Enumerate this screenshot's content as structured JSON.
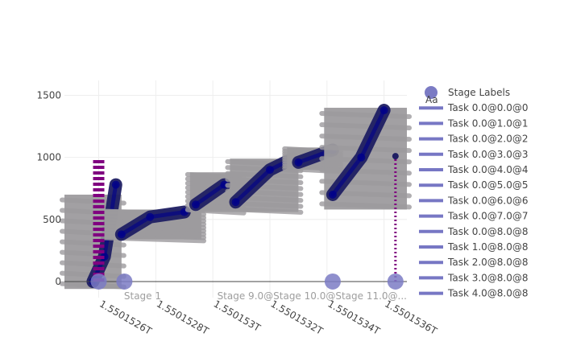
{
  "chart_data": {
    "type": "scatter",
    "xlim": [
      1550152480000,
      1550153680000
    ],
    "ylim": [
      -130,
      1620
    ],
    "x_ticks": [
      {
        "value": 1550152600000,
        "label": "1.5501526T"
      },
      {
        "value": 1550152800000,
        "label": "1.5501528T"
      },
      {
        "value": 1550153000000,
        "label": "1.550153T"
      },
      {
        "value": 1550153200000,
        "label": "1.5501532T"
      },
      {
        "value": 1550153400000,
        "label": "1.5501534T"
      },
      {
        "value": 1550153600000,
        "label": "1.5501536T"
      }
    ],
    "y_ticks": [
      {
        "value": 0,
        "label": "0"
      },
      {
        "value": 500,
        "label": "500"
      },
      {
        "value": 1000,
        "label": "1000"
      },
      {
        "value": 1500,
        "label": "1500"
      }
    ],
    "grid": true,
    "legend_position": "right",
    "legend": [
      {
        "label": "Stage Labels",
        "symbol": "marker"
      },
      {
        "label": "Task 0.0@0.0@0",
        "symbol": "line"
      },
      {
        "label": "Task 0.0@1.0@1",
        "symbol": "line"
      },
      {
        "label": "Task 0.0@2.0@2",
        "symbol": "line"
      },
      {
        "label": "Task 0.0@3.0@3",
        "symbol": "line"
      },
      {
        "label": "Task 0.0@4.0@4",
        "symbol": "line"
      },
      {
        "label": "Task 0.0@5.0@5",
        "symbol": "line"
      },
      {
        "label": "Task 0.0@6.0@6",
        "symbol": "line"
      },
      {
        "label": "Task 0.0@7.0@7",
        "symbol": "line"
      },
      {
        "label": "Task 0.0@8.0@8",
        "symbol": "line"
      },
      {
        "label": "Task 1.0@8.0@8",
        "symbol": "line"
      },
      {
        "label": "Task 2.0@8.0@8",
        "symbol": "line"
      },
      {
        "label": "Task 3.0@8.0@8",
        "symbol": "line"
      },
      {
        "label": "Task 4.0@8.0@8",
        "symbol": "line"
      }
    ],
    "legend_note": "Aa",
    "stage_labels": [
      {
        "x": 1550152600000,
        "y": 0,
        "label": ""
      },
      {
        "x": 1550152690000,
        "y": 0,
        "label": ""
      },
      {
        "x": 1550153420000,
        "y": 0,
        "label": "Stage 10.0@Stage 11.0@..."
      },
      {
        "x": 1550153640000,
        "y": 0,
        "label": ""
      }
    ],
    "stage_annotations": [
      "Stage 1",
      "Stage 9.0@Stage 10.0@Stage 11.0@..."
    ],
    "stages": [
      {
        "x0": 1550152480000,
        "x1": 1550152680000,
        "low": -60,
        "high": 700,
        "dark": [
          [
            1550152580000,
            0
          ],
          [
            1550152620000,
            200
          ],
          [
            1550152660000,
            780
          ]
        ]
      },
      {
        "x0": 1550152620000,
        "x1": 1550152960000,
        "low": 340,
        "high": 580,
        "dark": [
          [
            1550152680000,
            380
          ],
          [
            1550152780000,
            520
          ],
          [
            1550152900000,
            560
          ]
        ]
      },
      {
        "x0": 1550152920000,
        "x1": 1550153100000,
        "low": 560,
        "high": 880,
        "dark": [
          [
            1550152940000,
            620
          ],
          [
            1550153040000,
            780
          ]
        ]
      },
      {
        "x0": 1550153060000,
        "x1": 1550153300000,
        "low": 560,
        "high": 990,
        "dark": [
          [
            1550153080000,
            640
          ],
          [
            1550153200000,
            900
          ],
          [
            1550153280000,
            990
          ]
        ]
      },
      {
        "x0": 1550153260000,
        "x1": 1550153440000,
        "low": 900,
        "high": 1080,
        "dark": [
          [
            1550153300000,
            960
          ],
          [
            1550153420000,
            1060
          ]
        ]
      },
      {
        "x0": 1550153390000,
        "x1": 1550153680000,
        "low": 580,
        "high": 1400,
        "dark": [
          [
            1550153420000,
            700
          ],
          [
            1550153520000,
            1000
          ],
          [
            1550153600000,
            1380
          ]
        ]
      }
    ],
    "vertical_markers": [
      {
        "x": 1550152600000,
        "y0": 0,
        "y1": 980,
        "style": "thick"
      },
      {
        "x": 1550153640000,
        "y0": 0,
        "y1": 1010,
        "style": "dotted"
      }
    ],
    "colors": {
      "gray": "#9d9b9e",
      "dark": "#1f1f63",
      "navy": "#00008b",
      "purple": "#800080",
      "legend_line": "#7777c4",
      "stage_marker": "#7b7bc4",
      "zero_line": "#444444"
    }
  }
}
